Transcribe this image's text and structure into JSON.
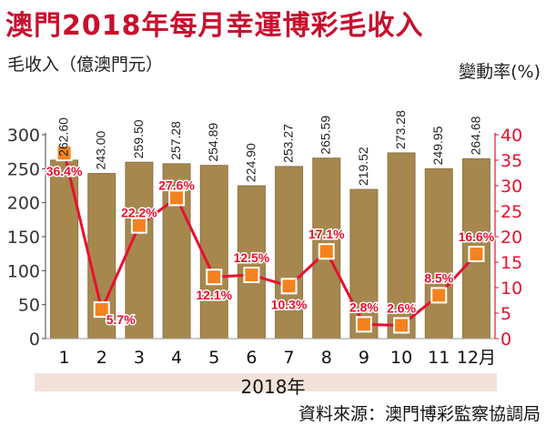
{
  "title": "澳門2018年每月幸運博彩毛收入",
  "source": "資料來源：澳門博彩監察協調局",
  "chart_data": {
    "type": "bar",
    "categories": [
      "1",
      "2",
      "3",
      "4",
      "5",
      "6",
      "7",
      "8",
      "9",
      "10",
      "11",
      "12月"
    ],
    "xlabel": "2018年",
    "ylabel": "毛收入（億澳門元）",
    "y2label": "變動率(%)",
    "ylim": [
      0,
      300
    ],
    "yticks": [
      0,
      50,
      100,
      150,
      200,
      250,
      300
    ],
    "y2lim": [
      0,
      40
    ],
    "y2ticks": [
      0,
      5,
      10,
      15,
      20,
      25,
      30,
      35,
      40
    ],
    "series": [
      {
        "type": "bar",
        "axis": "left",
        "values": [
          262.6,
          243.0,
          259.5,
          257.28,
          254.89,
          224.9,
          253.27,
          265.59,
          219.52,
          273.28,
          249.95,
          264.68
        ],
        "labels": [
          "262.60",
          "243.00",
          "259.50",
          "257.28",
          "254.89",
          "224.90",
          "253.27",
          "265.59",
          "219.52",
          "273.28",
          "249.95",
          "264.68"
        ]
      },
      {
        "type": "line",
        "axis": "right",
        "values": [
          36.4,
          5.7,
          22.2,
          27.6,
          12.1,
          12.5,
          10.3,
          17.1,
          2.8,
          2.6,
          8.5,
          16.6
        ],
        "labels": [
          "36.4%",
          "5.7%",
          "22.2%",
          "27.6%",
          "12.1%",
          "12.5%",
          "10.3%",
          "17.1%",
          "2.8%",
          "2.6%",
          "8.5%",
          "16.6%"
        ]
      }
    ],
    "grid": false,
    "colors": {
      "bar": "#a6884e",
      "bar_edge": "#8f7442",
      "line": "#e8102e",
      "marker": "#f5821f",
      "left_axis": "#444444",
      "right_axis": "#e8102e",
      "title": "#c8102e",
      "year_band": "#f3e2d8"
    }
  }
}
